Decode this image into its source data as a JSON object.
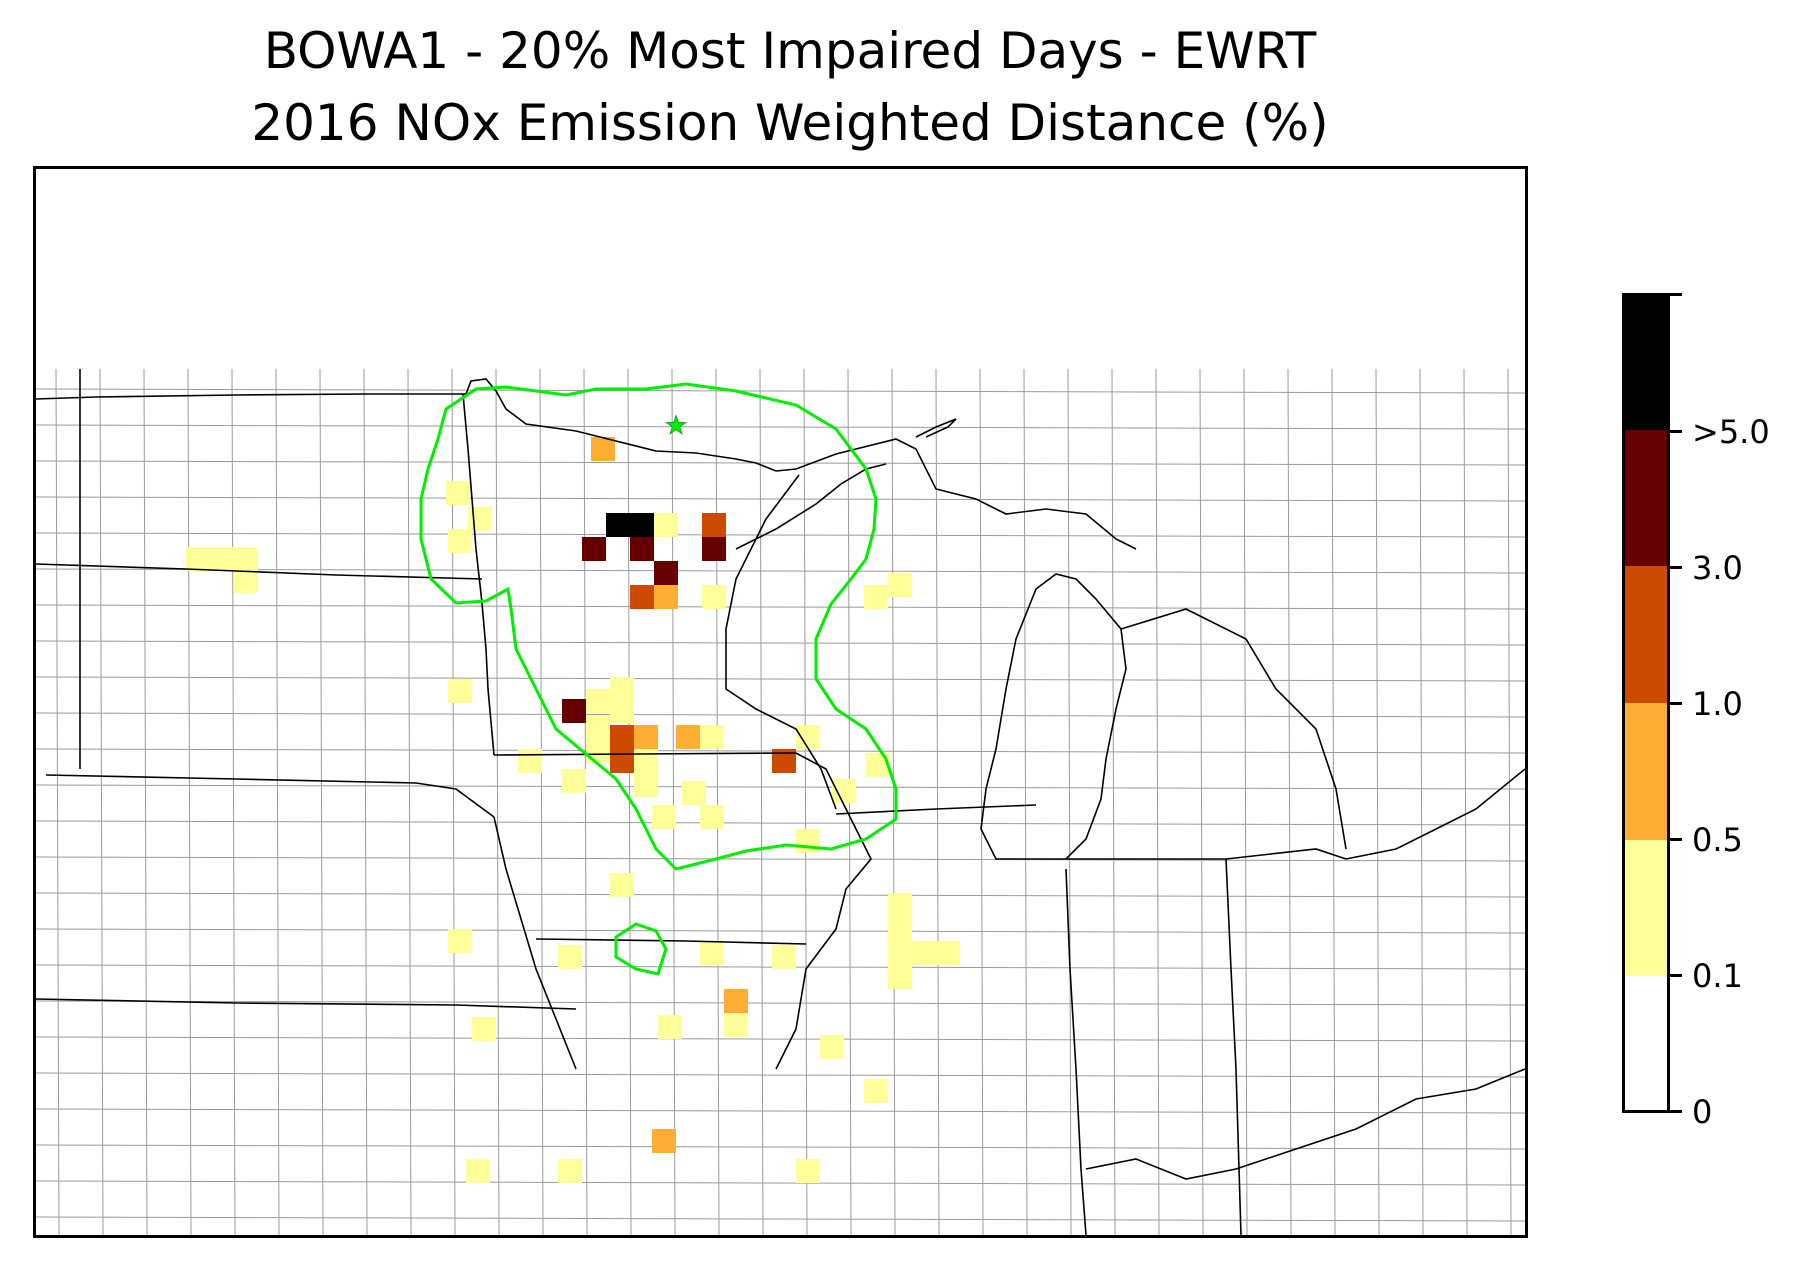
{
  "title": {
    "line1": "BOWA1 - 20% Most Impaired Days - EWRT",
    "line2": "2016 NOx Emission Weighted Distance (%)"
  },
  "map": {
    "site_marker": "green-star-icon",
    "contour_color": "#00ee00",
    "state_line_color": "#000000",
    "county_line_color": "#9a9a9a",
    "cell_colors": {
      "bin_0_1_0_5": "#ffff99",
      "bin_0_5_1_0": "#fdae33",
      "bin_1_0_3_0": "#cc4b00",
      "bin_3_0_5_0": "#660000",
      "bin_gt_5_0": "#000000"
    }
  },
  "colorbar": {
    "segments": [
      {
        "range": "0 - 0.1",
        "color": "#ffffff"
      },
      {
        "range": "0.1 - 0.5",
        "color": "#ffff99"
      },
      {
        "range": "0.5 - 1.0",
        "color": "#fdae33"
      },
      {
        "range": "1.0 - 3.0",
        "color": "#cc4b00"
      },
      {
        "range": "3.0 - 5.0",
        "color": "#660000"
      },
      {
        "range": "> 5.0",
        "color": "#000000"
      }
    ],
    "tick_labels": [
      "0",
      "0.1",
      "0.5",
      "1.0",
      "3.0",
      ">5.0"
    ]
  }
}
